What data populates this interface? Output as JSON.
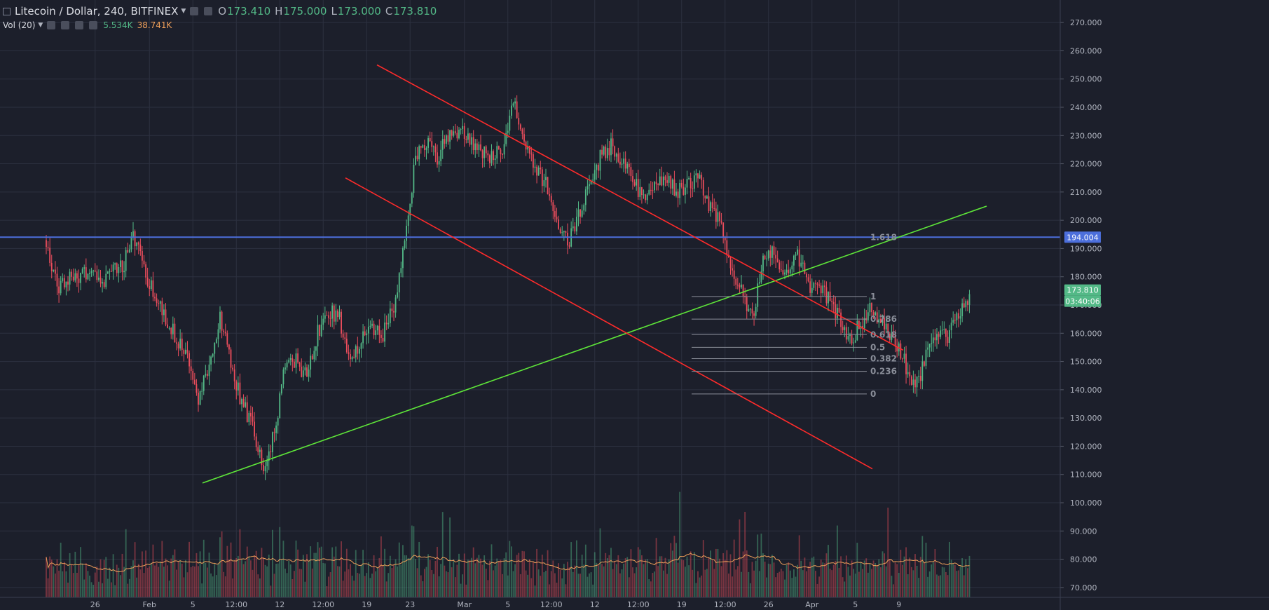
{
  "header": {
    "symbol": "Litecoin / Dollar, 240, BITFINEX",
    "open_label": "O",
    "open": "173.410",
    "high_label": "H",
    "high": "175.000",
    "low_label": "L",
    "low": "173.000",
    "close_label": "C",
    "close": "173.810",
    "vol_indicator": "Vol (20)",
    "vol_value": "5.534K",
    "vol_ma": "38.741K"
  },
  "price_tags": {
    "level": "194.004",
    "last": "173.810",
    "countdown": "03:40:06"
  },
  "colors": {
    "background": "#1c1f2b",
    "grid": "#2c3040",
    "up": "#53b987",
    "down": "#eb4d5c",
    "support_trend": "#5ee639",
    "channel": "#ff2b2b",
    "horizontal_level": "#4c6fdc",
    "fib": "#8a8e99",
    "volume_ma": "#f0a05a",
    "last_price_tag": "#53b987"
  },
  "chart_data": {
    "type": "candlestick",
    "title": "Litecoin / Dollar, 240, BITFINEX",
    "y_axis": {
      "side": "right",
      "range": [
        66,
        274
      ],
      "ticks": [
        "270.000",
        "260.000",
        "250.000",
        "240.000",
        "230.000",
        "220.000",
        "210.000",
        "200.000",
        "190.000",
        "180.000",
        "170.000",
        "160.000",
        "150.000",
        "140.000",
        "130.000",
        "120.000",
        "110.000",
        "100.000",
        "90.000",
        "80.000",
        "70.000"
      ]
    },
    "x_axis": {
      "ticks": [
        "26",
        "Feb",
        "5",
        "12:00",
        "12",
        "12:00",
        "19",
        "23",
        "Mar",
        "5",
        "12:00",
        "12",
        "12:00",
        "19",
        "12:00",
        "26",
        "Apr",
        "5",
        "9"
      ],
      "tick_days": [
        -3.5,
        1.5,
        5.5,
        9.5,
        13.5,
        17.5,
        21.5,
        25.5,
        30.5,
        34.5,
        38.5,
        42.5,
        46.5,
        50.5,
        54.5,
        58.5,
        62.5,
        66.5,
        70.5
      ]
    },
    "price_path": [
      [
        -8,
        193
      ],
      [
        -7,
        176
      ],
      [
        -6,
        180
      ],
      [
        -5,
        179
      ],
      [
        -4,
        183
      ],
      [
        -3,
        177
      ],
      [
        -2,
        184
      ],
      [
        -1,
        183
      ],
      [
        0,
        195
      ],
      [
        1,
        182
      ],
      [
        2,
        173
      ],
      [
        3,
        166
      ],
      [
        4,
        158
      ],
      [
        5,
        150
      ],
      [
        6,
        135
      ],
      [
        7,
        150
      ],
      [
        8,
        165
      ],
      [
        9,
        150
      ],
      [
        10,
        135
      ],
      [
        11,
        128
      ],
      [
        12,
        112
      ],
      [
        13,
        125
      ],
      [
        14,
        148
      ],
      [
        15,
        150
      ],
      [
        16,
        145
      ],
      [
        17,
        160
      ],
      [
        18,
        168
      ],
      [
        19,
        165
      ],
      [
        20,
        148
      ],
      [
        21,
        158
      ],
      [
        22,
        162
      ],
      [
        23,
        160
      ],
      [
        24,
        170
      ],
      [
        25,
        192
      ],
      [
        26,
        222
      ],
      [
        27,
        228
      ],
      [
        28,
        222
      ],
      [
        29,
        230
      ],
      [
        30,
        232
      ],
      [
        31,
        228
      ],
      [
        32,
        225
      ],
      [
        33,
        222
      ],
      [
        34,
        226
      ],
      [
        35,
        242
      ],
      [
        36,
        226
      ],
      [
        37,
        218
      ],
      [
        38,
        213
      ],
      [
        39,
        198
      ],
      [
        40,
        192
      ],
      [
        41,
        202
      ],
      [
        42,
        212
      ],
      [
        43,
        222
      ],
      [
        44,
        226
      ],
      [
        45,
        220
      ],
      [
        46,
        214
      ],
      [
        47,
        208
      ],
      [
        48,
        212
      ],
      [
        49,
        215
      ],
      [
        50,
        210
      ],
      [
        51,
        212
      ],
      [
        52,
        215
      ],
      [
        53,
        205
      ],
      [
        54,
        200
      ],
      [
        55,
        185
      ],
      [
        56,
        175
      ],
      [
        57,
        165
      ],
      [
        58,
        185
      ],
      [
        59,
        190
      ],
      [
        60,
        180
      ],
      [
        61,
        190
      ],
      [
        62,
        178
      ],
      [
        63,
        175
      ],
      [
        64,
        173
      ],
      [
        65,
        165
      ],
      [
        66,
        158
      ],
      [
        67,
        163
      ],
      [
        68,
        170
      ],
      [
        69,
        163
      ],
      [
        70,
        158
      ],
      [
        71,
        150
      ],
      [
        72,
        140
      ],
      [
        73,
        152
      ],
      [
        74,
        160
      ],
      [
        75,
        158
      ],
      [
        76,
        168
      ],
      [
        77,
        174
      ]
    ],
    "volume": {
      "range": [
        0,
        60
      ],
      "ma_period": 20
    },
    "annotations": {
      "horizontal_level": 194.004,
      "support_trendline": [
        [
          289,
          107
        ],
        [
          1408,
          205
        ]
      ],
      "channel_upper": [
        [
          538,
          255
        ],
        [
          1289,
          154
        ]
      ],
      "channel_lower": [
        [
          493,
          215
        ],
        [
          1245,
          112
        ]
      ],
      "fib_levels": [
        {
          "label": "1.618",
          "price": 194.0
        },
        {
          "label": "1",
          "price": 173.0
        },
        {
          "label": "0.786",
          "price": 165.0
        },
        {
          "label": "0.618",
          "price": 159.5
        },
        {
          "label": "0.5",
          "price": 155.0
        },
        {
          "label": "0.382",
          "price": 151.0
        },
        {
          "label": "0.236",
          "price": 146.5
        },
        {
          "label": "0",
          "price": 138.5
        }
      ]
    }
  }
}
